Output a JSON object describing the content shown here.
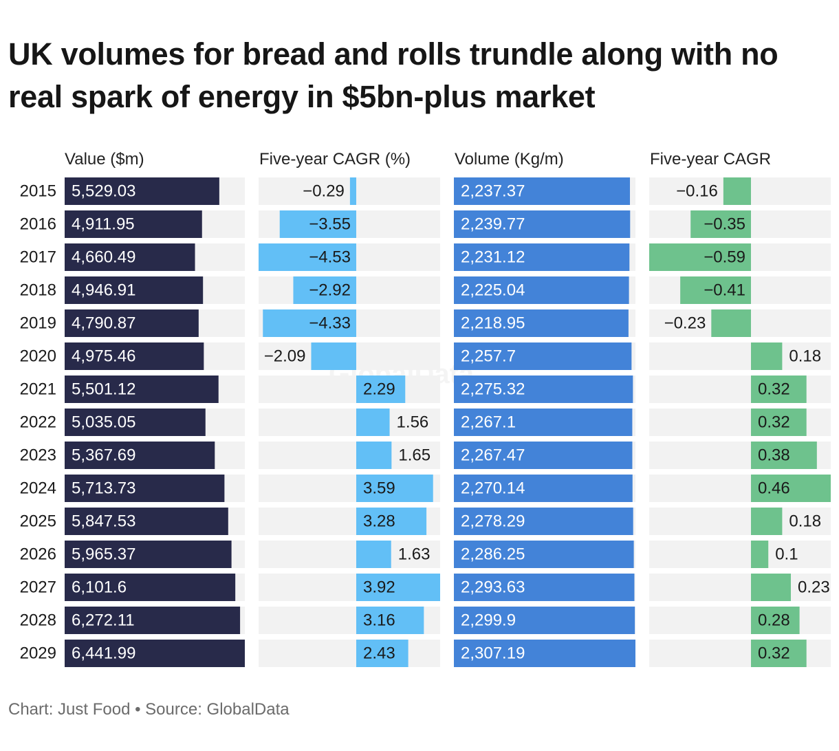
{
  "title": "UK volumes for bread and rolls trundle along with no real spark of energy in $5bn-plus market",
  "footer": {
    "credit": "Chart: Just Food",
    "separator": "•",
    "source": "Source: GlobalData"
  },
  "watermark": "GlobalData",
  "colors": {
    "value": "#282a4a",
    "value_cagr": "#62bff6",
    "volume": "#4383d8",
    "volume_cagr": "#6ec28d",
    "track": "#f2f2f2"
  },
  "chart_data": {
    "type": "bar",
    "categories": [
      "2015",
      "2016",
      "2017",
      "2018",
      "2019",
      "2020",
      "2021",
      "2022",
      "2023",
      "2024",
      "2025",
      "2026",
      "2027",
      "2028",
      "2029"
    ],
    "series": [
      {
        "name": "Value ($m)",
        "values": [
          5529.03,
          4911.95,
          4660.49,
          4946.91,
          4790.87,
          4975.46,
          5501.12,
          5035.05,
          5367.69,
          5713.73,
          5847.53,
          5965.37,
          6101.6,
          6272.11,
          6441.99
        ],
        "labels": [
          "5,529.03",
          "4,911.95",
          "4,660.49",
          "4,946.91",
          "4,790.87",
          "4,975.46",
          "5,501.12",
          "5,035.05",
          "5,367.69",
          "5,713.73",
          "5,847.53",
          "5,965.37",
          "6,101.6",
          "6,272.11",
          "6,441.99"
        ]
      },
      {
        "name": "Five-year CAGR (%)",
        "values": [
          -0.29,
          -3.55,
          -4.53,
          -2.92,
          -4.33,
          -2.09,
          2.29,
          1.56,
          1.65,
          3.59,
          3.28,
          1.63,
          3.92,
          3.16,
          2.43
        ],
        "labels": [
          "−0.29",
          "−3.55",
          "−4.53",
          "−2.92",
          "−4.33",
          "−2.09",
          "2.29",
          "1.56",
          "1.65",
          "3.59",
          "3.28",
          "1.63",
          "3.92",
          "3.16",
          "2.43"
        ]
      },
      {
        "name": "Volume (Kg/m)",
        "values": [
          2237.37,
          2239.77,
          2231.12,
          2225.04,
          2218.95,
          2257.7,
          2275.32,
          2267.1,
          2267.47,
          2270.14,
          2278.29,
          2286.25,
          2293.63,
          2299.9,
          2307.19
        ],
        "labels": [
          "2,237.37",
          "2,239.77",
          "2,231.12",
          "2,225.04",
          "2,218.95",
          "2,257.7",
          "2,275.32",
          "2,267.1",
          "2,267.47",
          "2,270.14",
          "2,278.29",
          "2,286.25",
          "2,293.63",
          "2,299.9",
          "2,307.19"
        ]
      },
      {
        "name": "Five-year CAGR",
        "values": [
          -0.16,
          -0.35,
          -0.59,
          -0.41,
          -0.23,
          0.18,
          0.32,
          0.32,
          0.38,
          0.46,
          0.18,
          0.1,
          0.23,
          0.28,
          0.32
        ],
        "labels": [
          "−0.16",
          "−0.35",
          "−0.59",
          "−0.41",
          "−0.23",
          "0.18",
          "0.32",
          "0.32",
          "0.38",
          "0.46",
          "0.18",
          "0.1",
          "0.23",
          "0.28",
          "0.32"
        ]
      }
    ]
  }
}
